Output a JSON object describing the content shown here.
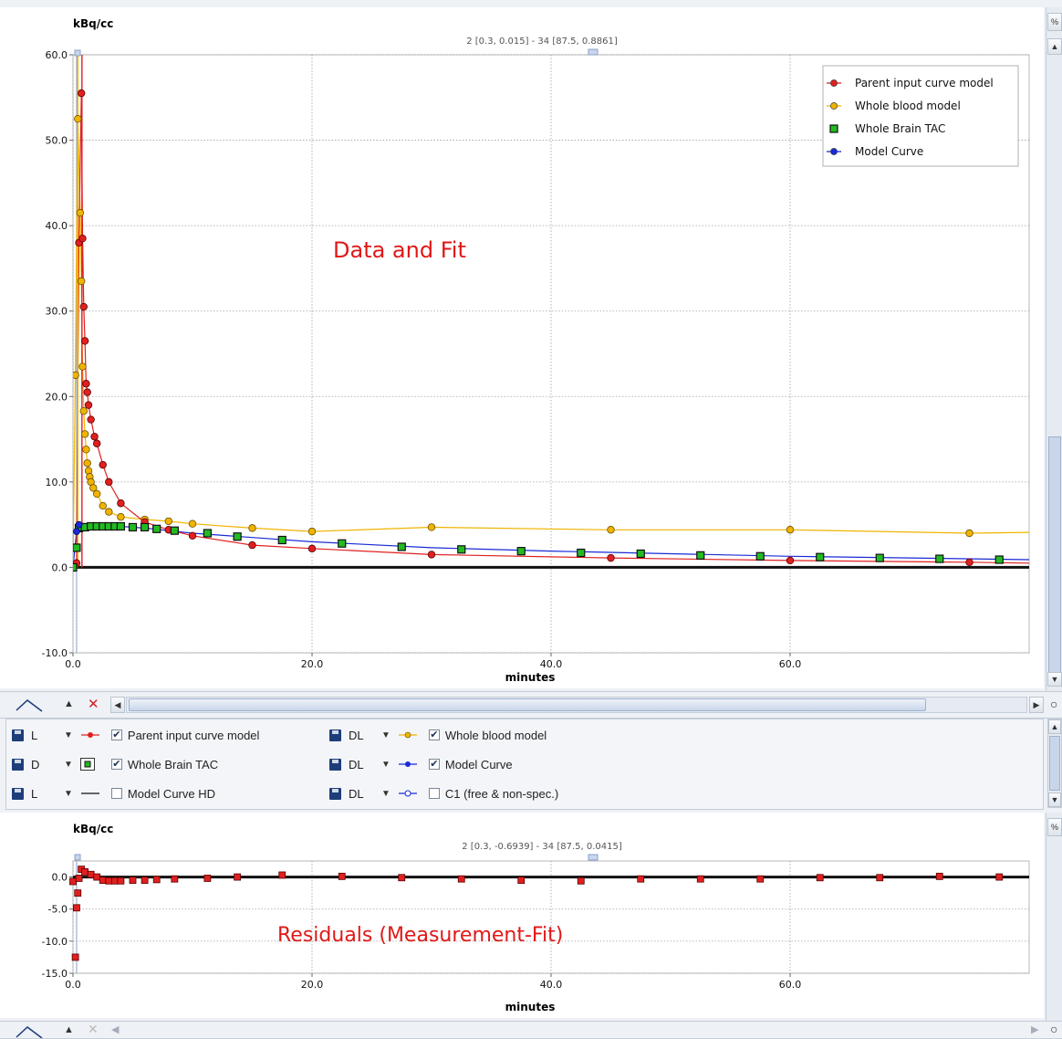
{
  "top_chart": {
    "ylabel": "kBq/cc",
    "xlabel": "minutes",
    "info": "2 [0.3, 0.015] - 34 [87.5, 0.8861]",
    "annotation": "Data and Fit",
    "yticks": [
      "60.0",
      "50.0",
      "40.0",
      "30.0",
      "20.0",
      "10.0",
      "0.0",
      "-10.0"
    ],
    "xticks": [
      "0.0",
      "20.0",
      "40.0",
      "60.0"
    ]
  },
  "bottom_chart": {
    "ylabel": "kBq/cc",
    "xlabel": "minutes",
    "info": "2 [0.3, -0.6939] - 34 [87.5, 0.0415]",
    "annotation": "Residuals (Measurement-Fit)",
    "yticks": [
      "0.0",
      "-5.0",
      "-10.0",
      "-15.0"
    ],
    "xticks": [
      "0.0",
      "20.0",
      "40.0",
      "60.0"
    ]
  },
  "legend": [
    {
      "label": "Parent input curve model",
      "color": "#e02020"
    },
    {
      "label": "Whole blood model",
      "color": "#f0b400"
    },
    {
      "label": "Whole Brain TAC",
      "color": "#22bb22"
    },
    {
      "label": "Model Curve",
      "color": "#1a2ad6"
    }
  ],
  "controls": {
    "rows": [
      [
        {
          "mode": "L",
          "label": "Parent input curve model",
          "checked": true,
          "glyph": "red-dot-line"
        },
        {
          "mode": "DL",
          "label": "Whole blood model",
          "checked": true,
          "glyph": "yellow-dot-line"
        }
      ],
      [
        {
          "mode": "D",
          "label": "Whole Brain TAC",
          "checked": true,
          "glyph": "green-square"
        },
        {
          "mode": "DL",
          "label": "Model Curve",
          "checked": true,
          "glyph": "blue-dot-line"
        }
      ],
      [
        {
          "mode": "L",
          "label": "Model Curve HD",
          "checked": false,
          "glyph": "black-line"
        },
        {
          "mode": "DL",
          "label": "C1 (free & non-spec.)",
          "checked": false,
          "glyph": "blue-open-dot-line"
        }
      ]
    ]
  },
  "chart_data": [
    {
      "type": "line",
      "ylabel": "kBq/cc",
      "xlabel": "minutes",
      "xlim": [
        0,
        80
      ],
      "ylim": [
        -10,
        60
      ],
      "grid": true,
      "legend_placement": "top-right",
      "series": [
        {
          "name": "Parent input curve model",
          "color": "#e02020",
          "marker": "circle",
          "x": [
            0.0,
            0.3,
            0.5,
            0.7,
            0.8,
            0.9,
            1.0,
            1.1,
            1.2,
            1.3,
            1.5,
            1.8,
            2.0,
            2.5,
            3.0,
            4.0,
            6.0,
            8.0,
            10.0,
            15.0,
            20.0,
            30.0,
            45.0,
            60.0,
            75.0,
            80.0
          ],
          "y": [
            0.0,
            0.5,
            38.0,
            55.5,
            38.5,
            30.5,
            26.5,
            21.5,
            20.5,
            19.0,
            17.3,
            15.3,
            14.5,
            12.0,
            10.0,
            7.5,
            5.3,
            4.4,
            3.7,
            2.6,
            2.2,
            1.5,
            1.1,
            0.8,
            0.6,
            0.5
          ]
        },
        {
          "name": "Whole blood model",
          "color": "#f0b400",
          "marker": "circle",
          "x": [
            0.0,
            0.2,
            0.4,
            0.6,
            0.7,
            0.8,
            0.9,
            1.0,
            1.1,
            1.2,
            1.3,
            1.4,
            1.5,
            1.7,
            2.0,
            2.5,
            3.0,
            4.0,
            6.0,
            8.0,
            10.0,
            15.0,
            20.0,
            30.0,
            45.0,
            60.0,
            75.0,
            80.0
          ],
          "y": [
            0.0,
            22.5,
            52.5,
            41.5,
            33.5,
            23.5,
            18.3,
            15.6,
            13.8,
            12.2,
            11.3,
            10.6,
            10.0,
            9.3,
            8.6,
            7.2,
            6.5,
            5.9,
            5.6,
            5.4,
            5.1,
            4.6,
            4.2,
            4.7,
            4.4,
            4.4,
            4.0,
            4.1
          ]
        },
        {
          "name": "Whole Brain TAC",
          "color": "#22bb22",
          "marker": "square",
          "x": [
            0.0,
            0.3,
            0.5,
            0.7,
            1.0,
            1.5,
            2.0,
            2.5,
            3.0,
            3.5,
            4.0,
            5.0,
            6.0,
            7.0,
            8.5,
            11.25,
            13.75,
            17.5,
            22.5,
            27.5,
            32.5,
            37.5,
            42.5,
            47.5,
            52.5,
            57.5,
            62.5,
            67.5,
            72.5,
            77.5
          ],
          "y": [
            0.0,
            2.3,
            4.6,
            4.7,
            4.7,
            4.8,
            4.8,
            4.8,
            4.8,
            4.8,
            4.8,
            4.7,
            4.7,
            4.5,
            4.3,
            4.0,
            3.6,
            3.2,
            2.8,
            2.4,
            2.1,
            1.9,
            1.7,
            1.6,
            1.4,
            1.3,
            1.2,
            1.1,
            1.0,
            0.9
          ]
        },
        {
          "name": "Model Curve",
          "color": "#1a2ad6",
          "marker": "circle",
          "x": [
            0.0,
            0.3,
            0.5,
            1.0,
            2.0,
            3.0,
            4.0,
            5.0,
            6.0,
            8.0,
            10.0,
            15.0,
            20.0,
            30.0,
            40.0,
            50.0,
            60.0,
            70.0,
            80.0
          ],
          "y": [
            0.0,
            4.2,
            5.0,
            4.7,
            4.8,
            4.8,
            4.8,
            4.7,
            4.6,
            4.3,
            4.0,
            3.5,
            3.0,
            2.3,
            1.9,
            1.6,
            1.3,
            1.1,
            0.9
          ]
        }
      ]
    },
    {
      "type": "scatter",
      "ylabel": "kBq/cc",
      "xlabel": "minutes",
      "xlim": [
        0,
        80
      ],
      "ylim": [
        -15,
        2.5
      ],
      "grid": true,
      "series": [
        {
          "name": "Residuals (Measurement-Fit)",
          "color": "#e02020",
          "marker": "square",
          "x": [
            0.0,
            0.2,
            0.3,
            0.4,
            0.5,
            0.7,
            1.0,
            1.5,
            2.0,
            2.5,
            3.0,
            3.5,
            4.0,
            5.0,
            6.0,
            7.0,
            8.5,
            11.25,
            13.75,
            17.5,
            22.5,
            27.5,
            32.5,
            37.5,
            42.5,
            47.5,
            52.5,
            57.5,
            62.5,
            67.5,
            72.5,
            77.5
          ],
          "y": [
            -0.7,
            -12.5,
            -4.8,
            -2.5,
            -0.2,
            1.2,
            0.8,
            0.4,
            0.0,
            -0.5,
            -0.6,
            -0.6,
            -0.6,
            -0.5,
            -0.5,
            -0.4,
            -0.3,
            -0.2,
            0.0,
            0.3,
            0.1,
            -0.1,
            -0.3,
            -0.5,
            -0.6,
            -0.3,
            -0.3,
            -0.3,
            -0.1,
            -0.1,
            0.1,
            0.0
          ]
        }
      ]
    }
  ]
}
